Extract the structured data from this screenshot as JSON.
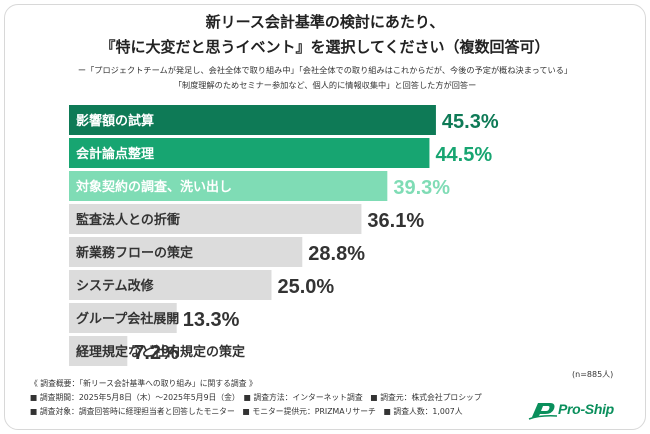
{
  "header": {
    "title_line1": "新リース会計基準の検討にあたり、",
    "title_line2": "『特に大変だと思うイベント』を選択してください（複数回答可）",
    "subtitle_line1": "ー「プロジェクトチームが発足し、会社全体で取り組み中」「会社全体での取り組みはこれからだが、今後の予定が概ね決まっている」",
    "subtitle_line2": "「制度理解のためセミナー参加など、個人的に情報収集中」と回答した方が回答ー"
  },
  "chart_data": {
    "type": "bar",
    "orientation": "horizontal",
    "categories": [
      "影響額の試算",
      "会計論点整理",
      "対象契約の調査、洗い出し",
      "監査法人との折衝",
      "新業務フローの策定",
      "システム改修",
      "グループ会社展開",
      "経理規定など社内規定の策定"
    ],
    "values": [
      45.3,
      44.5,
      39.3,
      36.1,
      28.8,
      25.0,
      13.3,
      7.2
    ],
    "value_labels": [
      "45.3%",
      "44.5%",
      "39.3%",
      "36.1%",
      "28.8%",
      "25.0%",
      "13.3%",
      "7.2%"
    ],
    "xlim": [
      0,
      100
    ],
    "colors": {
      "dark_green": "#0e7a56",
      "mid_green": "#17a571",
      "light_green": "#7fdcb5",
      "gray": "#dcdcdc",
      "dark_label": "#333333"
    },
    "bar_fill_keys": [
      "dark_green",
      "mid_green",
      "light_green",
      "gray",
      "gray",
      "gray",
      "gray",
      "gray"
    ],
    "label_color_keys": [
      "dark_green",
      "mid_green",
      "light_green",
      "dark_label",
      "dark_label",
      "dark_label",
      "dark_label",
      "dark_label"
    ],
    "text_color_keys": [
      "white",
      "white",
      "white",
      "dark",
      "dark",
      "dark",
      "dark",
      "dark"
    ],
    "n_note": "(n=885人)"
  },
  "footer": {
    "line1": "《 調査概要：「新リース会計基準への取り組み」に関する調査 》",
    "line2": "■ 調査期間：2025年5月8日（木）～2025年5月9日（金）　■ 調査方法：インターネット調査　■ 調査元：株式会社プロシップ",
    "line3": "■ 調査対象：調査回答時に経理担当者と回答したモニター　■ モニター提供元：PRIZMAリサーチ　■ 調査人数：1,007人"
  },
  "logo": {
    "text": "Pro-Ship",
    "icon": "proship-logo-icon",
    "color": "#0a8f5c"
  }
}
